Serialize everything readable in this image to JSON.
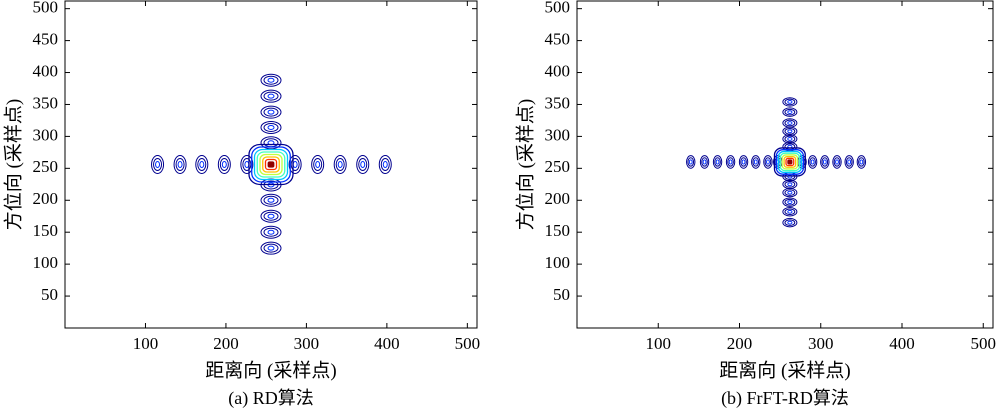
{
  "chart_data": [
    {
      "type": "contour",
      "caption": "(a) RD算法",
      "x_label": "距离向 (采样点)",
      "y_label": "方位向 (采样点)",
      "xlim": [
        0,
        512
      ],
      "ylim": [
        0,
        512
      ],
      "xticks": [
        100,
        200,
        300,
        400,
        500
      ],
      "yticks": [
        50,
        100,
        150,
        200,
        250,
        300,
        350,
        400,
        450,
        500
      ],
      "peak": {
        "x": 256,
        "y": 256
      },
      "range_lobes": [
        115,
        143,
        170,
        198,
        226,
        286,
        314,
        342,
        370,
        398
      ],
      "azimuth_lobes": [
        125,
        150,
        175,
        200,
        224,
        290,
        314,
        338,
        363,
        388
      ],
      "colors": [
        "#00008f",
        "#0030ff",
        "#00c0ff",
        "#40ffbf",
        "#c0ff40",
        "#ffc000",
        "#ff3000",
        "#8f0000"
      ]
    },
    {
      "type": "contour",
      "caption": "(b) FrFT-RD算法",
      "x_label": "距离向 (采样点)",
      "y_label": "方位向 (采样点)",
      "xlim": [
        0,
        512
      ],
      "ylim": [
        0,
        512
      ],
      "xticks": [
        100,
        200,
        300,
        400,
        500
      ],
      "yticks": [
        50,
        100,
        150,
        200,
        250,
        300,
        350,
        400,
        450,
        500
      ],
      "peak": {
        "x": 262,
        "y": 260
      },
      "range_lobes": [
        140,
        157,
        173,
        189,
        205,
        220,
        235,
        247,
        277,
        290,
        305,
        320,
        335,
        350
      ],
      "azimuth_lobes": [
        165,
        182,
        197,
        212,
        225,
        237,
        284,
        296,
        308,
        321,
        338,
        354
      ],
      "colors": [
        "#00008f",
        "#0030ff",
        "#00c0ff",
        "#40ffbf",
        "#c0ff40",
        "#ffc000",
        "#ff3000",
        "#8f0000"
      ]
    }
  ]
}
